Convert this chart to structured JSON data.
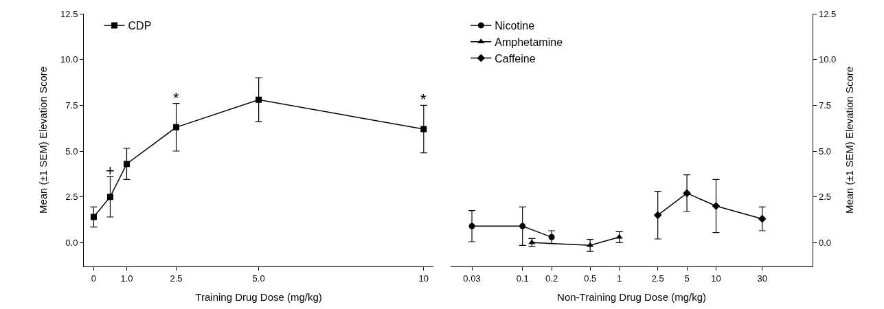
{
  "chart_data": [
    {
      "type": "line",
      "xlabel": "Training Drug Dose (mg/kg)",
      "ylabel": "Mean (±1 SEM) Elevation Score",
      "xlim": [
        -0.3,
        10.3
      ],
      "xticks": [
        0,
        {
          "value": 1,
          "label": "1.0"
        },
        2.5,
        {
          "value": 5,
          "label": "5.0"
        },
        10
      ],
      "ylim": [
        -1.3,
        12.5
      ],
      "yticks": [
        {
          "value": 0,
          "label": "0.0"
        },
        2.5,
        {
          "value": 5,
          "label": "5.0"
        },
        7.5,
        {
          "value": 10,
          "label": "10.0"
        },
        12.5
      ],
      "legend": "top left",
      "series": [
        {
          "name": "CDP",
          "color": "#000000",
          "marker": "square",
          "x": [
            0,
            0.5,
            1,
            2.5,
            5,
            10
          ],
          "values": [
            1.4,
            2.5,
            4.3,
            6.3,
            7.8,
            6.2
          ],
          "errors": [
            0.55,
            1.1,
            0.85,
            1.3,
            1.2,
            1.3
          ]
        }
      ],
      "annotations": [
        {
          "text": "+",
          "x": 0.5,
          "y": 3.6
        },
        {
          "text": "*",
          "x": 2.5,
          "y": 7.6
        },
        {
          "text": "*",
          "x": 10,
          "y": 7.5
        }
      ]
    },
    {
      "type": "line",
      "xlabel": "Non-Training Drug Dose (mg/kg)",
      "y2label": "Mean (±1 SEM) Elevation Score",
      "log": "x",
      "xlim": [
        0.018,
        100
      ],
      "xticks": [
        0.03,
        0.1,
        0.2,
        0.5,
        1,
        2.5,
        5,
        10,
        30
      ],
      "y2lim": [
        -1.3,
        12.5
      ],
      "y2ticks": [
        {
          "value": 0,
          "label": "0.0"
        },
        2.5,
        {
          "value": 5,
          "label": "5.0"
        },
        7.5,
        {
          "value": 10,
          "label": "10.0"
        },
        12.5
      ],
      "legend": "top left",
      "series": [
        {
          "name": "Nicotine",
          "color": "#000000",
          "marker": "circle",
          "axis": "y2",
          "x": [
            0.03,
            0.1,
            0.2
          ],
          "values": [
            0.9,
            0.9,
            0.3
          ],
          "errors": [
            0.85,
            1.05,
            0.35
          ]
        },
        {
          "name": "Amphetamine",
          "color": "#000000",
          "marker": "triangle",
          "axis": "y2",
          "x": [
            0.125,
            0.5,
            1
          ],
          "values": [
            0.0,
            -0.15,
            0.3
          ],
          "errors": [
            0.22,
            0.33,
            0.3
          ]
        },
        {
          "name": "Caffeine",
          "color": "#000000",
          "marker": "diamond",
          "axis": "y2",
          "x": [
            2.5,
            5,
            10,
            30
          ],
          "values": [
            1.5,
            2.7,
            2.0,
            1.3
          ],
          "errors": [
            1.3,
            1.0,
            1.45,
            0.65
          ]
        }
      ]
    }
  ]
}
